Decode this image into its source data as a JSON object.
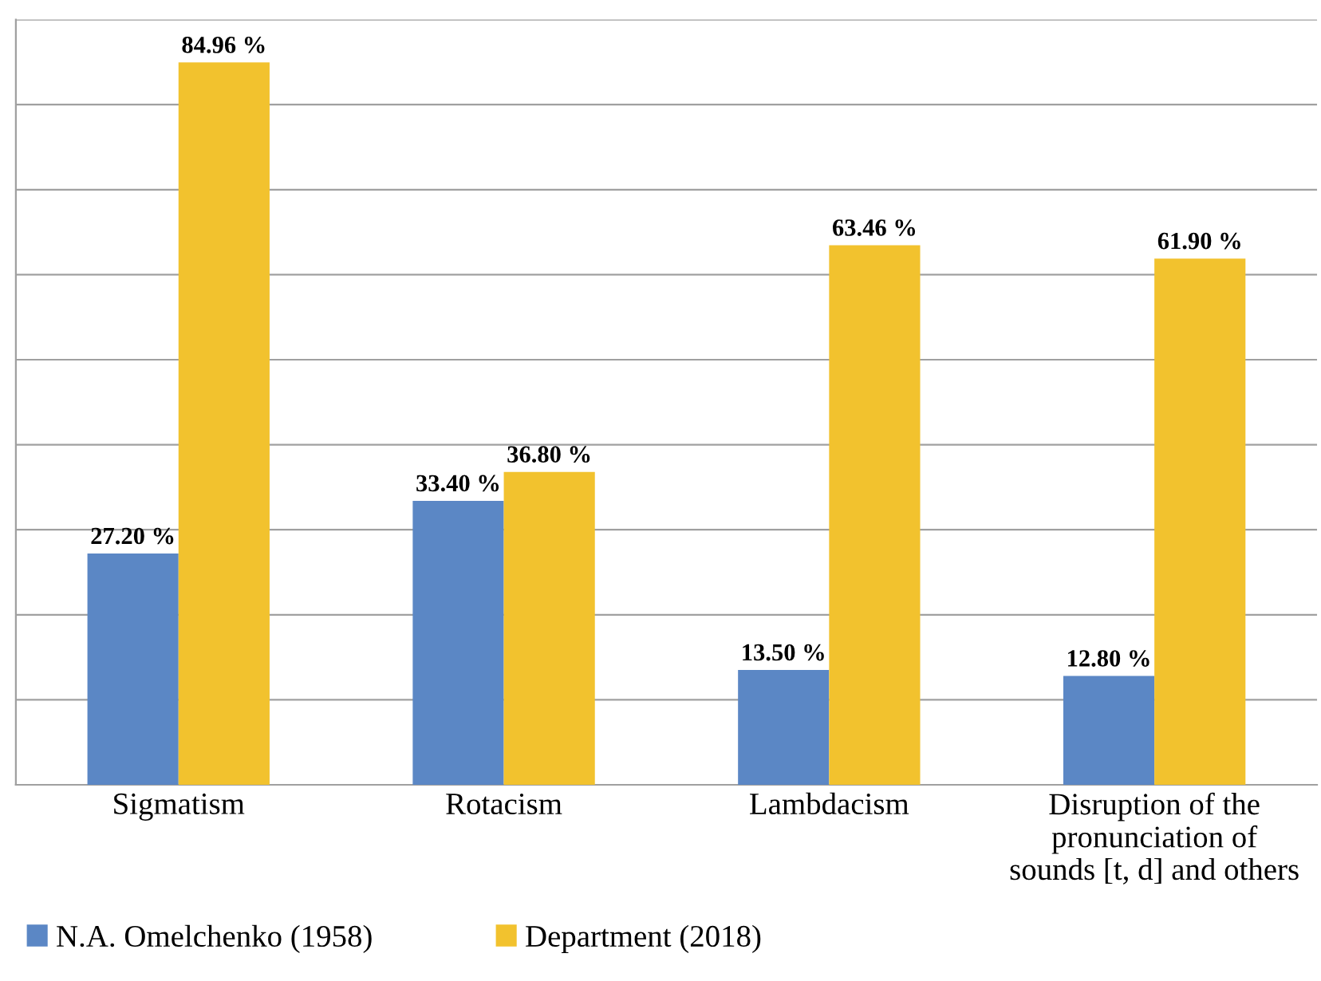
{
  "chart_data": {
    "type": "bar",
    "categories": [
      "Sigmatism",
      "Rotacism",
      "Lambdacism",
      "Disruption of the\npronunciation of\nsounds [t, d] and others"
    ],
    "series": [
      {
        "name": "N.A. Omelchenko (1958)",
        "color": "#5b87c5",
        "values": [
          27.2,
          33.4,
          13.5,
          12.8
        ],
        "value_labels": [
          "27.20 %",
          "33.40 %",
          "13.50 %",
          "12.80 %"
        ]
      },
      {
        "name": "Department (2018)",
        "color": "#f2c22e",
        "values": [
          84.96,
          36.8,
          63.46,
          61.9
        ],
        "value_labels": [
          "84.96 %",
          "36.80 %",
          "63.46 %",
          "61.90 %"
        ]
      }
    ],
    "ylim": [
      0,
      90
    ],
    "yticks": [
      {
        "value": 0,
        "label": null
      },
      {
        "value": 10,
        "label": null
      },
      {
        "value": 20,
        "label": null
      },
      {
        "value": 30,
        "label": null
      },
      {
        "value": 40,
        "label": null
      },
      {
        "value": 50,
        "label": null
      },
      {
        "value": 60,
        "label": null
      },
      {
        "value": 70,
        "label": null
      },
      {
        "value": 80,
        "label": null
      },
      {
        "value": 90,
        "label": null
      }
    ],
    "grid": "y",
    "tick_labels": "x",
    "legend": "bottom left"
  }
}
